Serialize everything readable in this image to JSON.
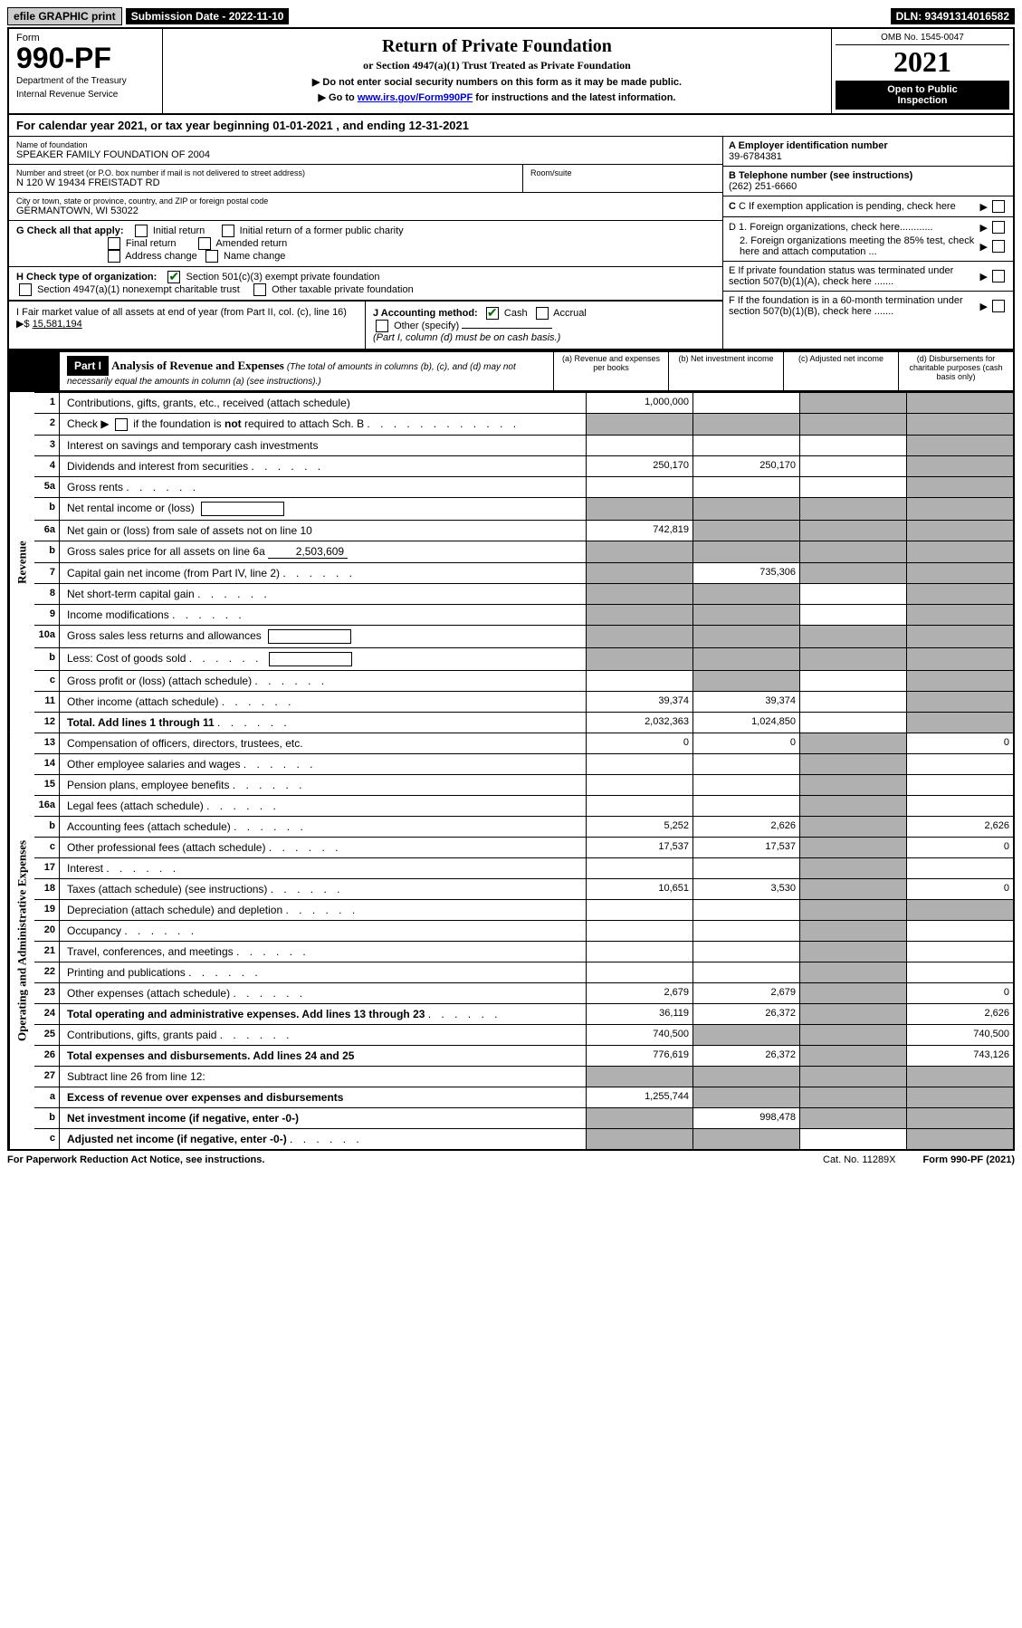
{
  "topbar": {
    "efile": "efile GRAPHIC print",
    "submission_label": "Submission Date - 2022-11-10",
    "dln": "DLN: 93491314016582"
  },
  "header": {
    "form_label": "Form",
    "form_number": "990-PF",
    "dept1": "Department of the Treasury",
    "dept2": "Internal Revenue Service",
    "title": "Return of Private Foundation",
    "subtitle": "or Section 4947(a)(1) Trust Treated as Private Foundation",
    "instr1": "▶ Do not enter social security numbers on this form as it may be made public.",
    "instr2a": "▶ Go to ",
    "instr2_link": "www.irs.gov/Form990PF",
    "instr2b": " for instructions and the latest information.",
    "omb": "OMB No. 1545-0047",
    "year": "2021",
    "inspection1": "Open to Public",
    "inspection2": "Inspection"
  },
  "calendar": "For calendar year 2021, or tax year beginning 01-01-2021                              , and ending 12-31-2021",
  "info": {
    "name_label": "Name of foundation",
    "name": "SPEAKER FAMILY FOUNDATION OF 2004",
    "addr_label": "Number and street (or P.O. box number if mail is not delivered to street address)",
    "addr": "N 120 W 19434 FREISTADT RD",
    "room_label": "Room/suite",
    "city_label": "City or town, state or province, country, and ZIP or foreign postal code",
    "city": "GERMANTOWN, WI  53022",
    "a_label": "A Employer identification number",
    "a_val": "39-6784381",
    "b_label": "B Telephone number (see instructions)",
    "b_val": "(262) 251-6660",
    "c_label": "C If exemption application is pending, check here",
    "d1": "D 1. Foreign organizations, check here............",
    "d2": "2. Foreign organizations meeting the 85% test, check here and attach computation ...",
    "e": "E  If private foundation status was terminated under section 507(b)(1)(A), check here .......",
    "f": "F  If the foundation is in a 60-month termination under section 507(b)(1)(B), check here .......",
    "g_label": "G Check all that apply:",
    "g_initial": "Initial return",
    "g_initial_former": "Initial return of a former public charity",
    "g_final": "Final return",
    "g_amended": "Amended return",
    "g_address": "Address change",
    "g_name": "Name change",
    "h_label": "H Check type of organization:",
    "h_501c3": "Section 501(c)(3) exempt private foundation",
    "h_4947": "Section 4947(a)(1) nonexempt charitable trust",
    "h_other": "Other taxable private foundation",
    "i_label": "I Fair market value of all assets at end of year (from Part II, col. (c), line 16)",
    "i_val": "15,581,194",
    "j_label": "J Accounting method:",
    "j_cash": "Cash",
    "j_accrual": "Accrual",
    "j_other": "Other (specify)",
    "j_note": "(Part I, column (d) must be on cash basis.)"
  },
  "part1": {
    "label": "Part I",
    "title": "Analysis of Revenue and Expenses",
    "note": "(The total of amounts in columns (b), (c), and (d) may not necessarily equal the amounts in column (a) (see instructions).)",
    "col_a": "(a)   Revenue and expenses per books",
    "col_b": "(b)   Net investment income",
    "col_c": "(c)   Adjusted net income",
    "col_d": "(d)  Disbursements for charitable purposes (cash basis only)"
  },
  "sidebar": {
    "revenue": "Revenue",
    "expenses": "Operating and Administrative Expenses"
  },
  "rows": [
    {
      "n": "1",
      "d": "Contributions, gifts, grants, etc., received (attach schedule)",
      "a": "1,000,000",
      "b": "",
      "c": "g",
      "dd": "g"
    },
    {
      "n": "2",
      "d": "Check ▶ ☐ if the foundation is not required to attach Sch. B",
      "dots": true,
      "a": "",
      "b": "g",
      "c": "g",
      "dd": "g",
      "a_grey": true
    },
    {
      "n": "3",
      "d": "Interest on savings and temporary cash investments",
      "a": "",
      "b": "",
      "c": "",
      "dd": "g"
    },
    {
      "n": "4",
      "d": "Dividends and interest from securities",
      "dots": true,
      "a": "250,170",
      "b": "250,170",
      "c": "",
      "dd": "g"
    },
    {
      "n": "5a",
      "d": "Gross rents",
      "dots": true,
      "a": "",
      "b": "",
      "c": "",
      "dd": "g"
    },
    {
      "n": "b",
      "d": "Net rental income or (loss)",
      "inline": true,
      "a": "g",
      "b": "g",
      "c": "g",
      "dd": "g",
      "a_grey": true
    },
    {
      "n": "6a",
      "d": "Net gain or (loss) from sale of assets not on line 10",
      "a": "742,819",
      "b": "g",
      "c": "g",
      "dd": "g"
    },
    {
      "n": "b",
      "d": "Gross sales price for all assets on line 6a",
      "inline_val": "2,503,609",
      "a": "g",
      "b": "g",
      "c": "g",
      "dd": "g",
      "a_grey": true
    },
    {
      "n": "7",
      "d": "Capital gain net income (from Part IV, line 2)",
      "dots": true,
      "a": "g",
      "b": "735,306",
      "c": "g",
      "dd": "g",
      "a_grey": true
    },
    {
      "n": "8",
      "d": "Net short-term capital gain",
      "dots": true,
      "a": "g",
      "b": "g",
      "c": "",
      "dd": "g",
      "a_grey": true
    },
    {
      "n": "9",
      "d": "Income modifications",
      "dots": true,
      "a": "g",
      "b": "g",
      "c": "",
      "dd": "g",
      "a_grey": true
    },
    {
      "n": "10a",
      "d": "Gross sales less returns and allowances",
      "inline": true,
      "a": "g",
      "b": "g",
      "c": "g",
      "dd": "g",
      "a_grey": true
    },
    {
      "n": "b",
      "d": "Less: Cost of goods sold",
      "dots": true,
      "inline": true,
      "a": "g",
      "b": "g",
      "c": "g",
      "dd": "g",
      "a_grey": true
    },
    {
      "n": "c",
      "d": "Gross profit or (loss) (attach schedule)",
      "dots": true,
      "a": "",
      "b": "g",
      "c": "",
      "dd": "g"
    },
    {
      "n": "11",
      "d": "Other income (attach schedule)",
      "dots": true,
      "a": "39,374",
      "b": "39,374",
      "c": "",
      "dd": "g"
    },
    {
      "n": "12",
      "d": "Total. Add lines 1 through 11",
      "dots": true,
      "bold": true,
      "a": "2,032,363",
      "b": "1,024,850",
      "c": "",
      "dd": "g"
    },
    {
      "n": "13",
      "d": "Compensation of officers, directors, trustees, etc.",
      "a": "0",
      "b": "0",
      "c": "g",
      "dd": "0"
    },
    {
      "n": "14",
      "d": "Other employee salaries and wages",
      "dots": true,
      "a": "",
      "b": "",
      "c": "g",
      "dd": ""
    },
    {
      "n": "15",
      "d": "Pension plans, employee benefits",
      "dots": true,
      "a": "",
      "b": "",
      "c": "g",
      "dd": ""
    },
    {
      "n": "16a",
      "d": "Legal fees (attach schedule)",
      "dots": true,
      "a": "",
      "b": "",
      "c": "g",
      "dd": ""
    },
    {
      "n": "b",
      "d": "Accounting fees (attach schedule)",
      "dots": true,
      "a": "5,252",
      "b": "2,626",
      "c": "g",
      "dd": "2,626"
    },
    {
      "n": "c",
      "d": "Other professional fees (attach schedule)",
      "dots": true,
      "a": "17,537",
      "b": "17,537",
      "c": "g",
      "dd": "0"
    },
    {
      "n": "17",
      "d": "Interest",
      "dots": true,
      "a": "",
      "b": "",
      "c": "g",
      "dd": ""
    },
    {
      "n": "18",
      "d": "Taxes (attach schedule) (see instructions)",
      "dots": true,
      "a": "10,651",
      "b": "3,530",
      "c": "g",
      "dd": "0"
    },
    {
      "n": "19",
      "d": "Depreciation (attach schedule) and depletion",
      "dots": true,
      "a": "",
      "b": "",
      "c": "g",
      "dd": "g"
    },
    {
      "n": "20",
      "d": "Occupancy",
      "dots": true,
      "a": "",
      "b": "",
      "c": "g",
      "dd": ""
    },
    {
      "n": "21",
      "d": "Travel, conferences, and meetings",
      "dots": true,
      "a": "",
      "b": "",
      "c": "g",
      "dd": ""
    },
    {
      "n": "22",
      "d": "Printing and publications",
      "dots": true,
      "a": "",
      "b": "",
      "c": "g",
      "dd": ""
    },
    {
      "n": "23",
      "d": "Other expenses (attach schedule)",
      "dots": true,
      "a": "2,679",
      "b": "2,679",
      "c": "g",
      "dd": "0"
    },
    {
      "n": "24",
      "d": "Total operating and administrative expenses. Add lines 13 through 23",
      "dots": true,
      "bold": true,
      "a": "36,119",
      "b": "26,372",
      "c": "g",
      "dd": "2,626"
    },
    {
      "n": "25",
      "d": "Contributions, gifts, grants paid",
      "dots": true,
      "a": "740,500",
      "b": "g",
      "c": "g",
      "dd": "740,500"
    },
    {
      "n": "26",
      "d": "Total expenses and disbursements. Add lines 24 and 25",
      "bold": true,
      "a": "776,619",
      "b": "26,372",
      "c": "g",
      "dd": "743,126"
    },
    {
      "n": "27",
      "d": "Subtract line 26 from line 12:",
      "a": "g",
      "b": "g",
      "c": "g",
      "dd": "g",
      "a_grey": true
    },
    {
      "n": "a",
      "d": "Excess of revenue over expenses and disbursements",
      "bold": true,
      "a": "1,255,744",
      "b": "g",
      "c": "g",
      "dd": "g"
    },
    {
      "n": "b",
      "d": "Net investment income (if negative, enter -0-)",
      "bold": true,
      "a": "g",
      "b": "998,478",
      "c": "g",
      "dd": "g",
      "a_grey": true
    },
    {
      "n": "c",
      "d": "Adjusted net income (if negative, enter -0-)",
      "dots": true,
      "bold": true,
      "a": "g",
      "b": "g",
      "c": "",
      "dd": "g",
      "a_grey": true
    }
  ],
  "footer": {
    "paperwork": "For Paperwork Reduction Act Notice, see instructions.",
    "cat": "Cat. No. 11289X",
    "form": "Form 990-PF (2021)"
  }
}
